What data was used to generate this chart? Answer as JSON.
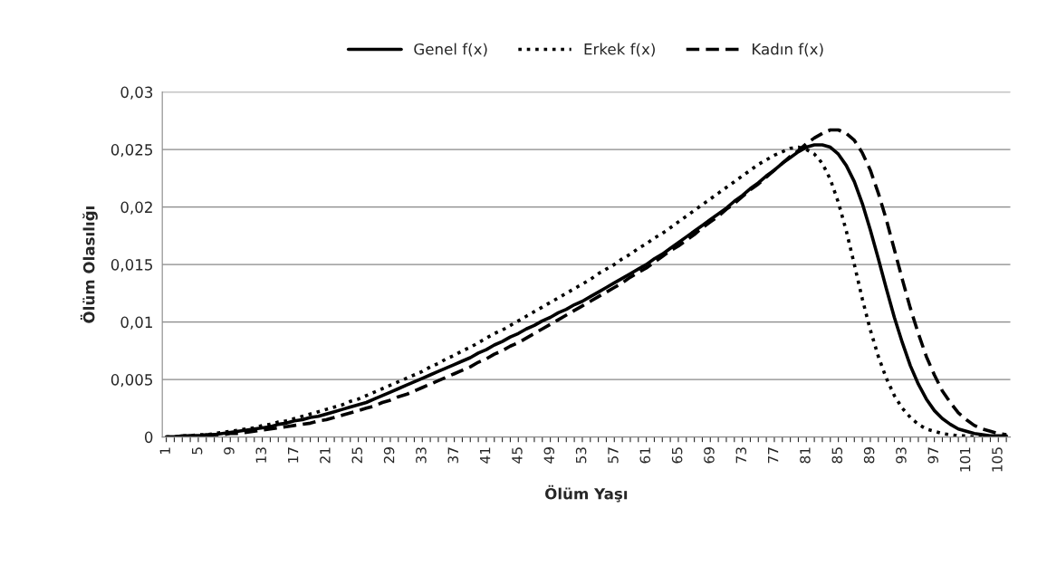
{
  "chart_data": {
    "type": "line",
    "xlabel": "Ölüm Yaşı",
    "ylabel": "Ölüm Olasılığı",
    "categories": [
      "1",
      null,
      null,
      null,
      "5",
      null,
      null,
      null,
      "9",
      null,
      null,
      null,
      "13",
      null,
      null,
      null,
      "17",
      null,
      null,
      null,
      "21",
      null,
      null,
      null,
      "25",
      null,
      null,
      null,
      "29",
      null,
      null,
      null,
      "33",
      null,
      null,
      null,
      "37",
      null,
      null,
      null,
      "41",
      null,
      null,
      null,
      "45",
      null,
      null,
      null,
      "49",
      null,
      null,
      null,
      "53",
      null,
      null,
      null,
      "57",
      null,
      null,
      null,
      "61",
      null,
      null,
      null,
      "65",
      null,
      null,
      null,
      "69",
      null,
      null,
      null,
      "73",
      null,
      null,
      null,
      "77",
      null,
      null,
      null,
      "81",
      null,
      null,
      null,
      "85",
      null,
      null,
      null,
      "89",
      null,
      null,
      null,
      "93",
      null,
      null,
      null,
      "97",
      null,
      null,
      null,
      "101",
      null,
      null,
      null,
      "105",
      null
    ],
    "series": [
      {
        "name": "Genel f(x)",
        "color": "#000000",
        "line_style": "solid",
        "values": [
          0,
          0,
          0.0001,
          0.0001,
          0.0001,
          0.0002,
          0.0002,
          0.0003,
          0.0004,
          0.0005,
          0.0006,
          0.0007,
          0.0008,
          0.0009,
          0.0011,
          0.0012,
          0.0014,
          0.0015,
          0.0017,
          0.0018,
          0.002,
          0.0022,
          0.0024,
          0.0026,
          0.0028,
          0.003,
          0.0033,
          0.0036,
          0.0039,
          0.0042,
          0.0045,
          0.0048,
          0.0051,
          0.0054,
          0.0057,
          0.006,
          0.0063,
          0.0066,
          0.0069,
          0.0073,
          0.0076,
          0.008,
          0.0083,
          0.0087,
          0.009,
          0.0094,
          0.0097,
          0.0101,
          0.0104,
          0.0108,
          0.0111,
          0.0115,
          0.0118,
          0.0122,
          0.0126,
          0.013,
          0.0134,
          0.0138,
          0.0142,
          0.0146,
          0.015,
          0.0155,
          0.0159,
          0.0164,
          0.0169,
          0.0174,
          0.0179,
          0.0184,
          0.0189,
          0.0194,
          0.0199,
          0.0205,
          0.021,
          0.0216,
          0.0221,
          0.0227,
          0.0232,
          0.0238,
          0.0243,
          0.0248,
          0.0252,
          0.0254,
          0.0254,
          0.0252,
          0.0246,
          0.0236,
          0.0222,
          0.0203,
          0.018,
          0.0155,
          0.0129,
          0.0104,
          0.0082,
          0.0062,
          0.0046,
          0.0033,
          0.0023,
          0.0016,
          0.0011,
          0.0007,
          0.0005,
          0.0003,
          0.0002,
          0.0001,
          0.0001,
          0.0001
        ]
      },
      {
        "name": "Erkek f(x)",
        "color": "#000000",
        "line_style": "dotted",
        "values": [
          0,
          0,
          0.0001,
          0.0001,
          0.0002,
          0.0002,
          0.0003,
          0.0004,
          0.0005,
          0.0006,
          0.0007,
          0.0008,
          0.001,
          0.0011,
          0.0013,
          0.0014,
          0.0016,
          0.0018,
          0.002,
          0.0022,
          0.0024,
          0.0026,
          0.0028,
          0.0031,
          0.0033,
          0.0036,
          0.0039,
          0.0042,
          0.0045,
          0.0048,
          0.0051,
          0.0054,
          0.0057,
          0.0061,
          0.0064,
          0.0068,
          0.0071,
          0.0075,
          0.0078,
          0.0082,
          0.0086,
          0.009,
          0.0093,
          0.0097,
          0.0101,
          0.0105,
          0.0109,
          0.0113,
          0.0117,
          0.0121,
          0.0125,
          0.0129,
          0.0133,
          0.0137,
          0.0142,
          0.0146,
          0.015,
          0.0155,
          0.0159,
          0.0164,
          0.0168,
          0.0173,
          0.0177,
          0.0182,
          0.0187,
          0.0192,
          0.0197,
          0.0202,
          0.0207,
          0.0212,
          0.0217,
          0.0222,
          0.0227,
          0.0232,
          0.0237,
          0.0241,
          0.0245,
          0.0248,
          0.0251,
          0.0252,
          0.025,
          0.0246,
          0.0238,
          0.0224,
          0.0204,
          0.0179,
          0.015,
          0.012,
          0.0093,
          0.007,
          0.0051,
          0.0036,
          0.0025,
          0.0017,
          0.0011,
          0.0007,
          0.0005,
          0.0003,
          0.0002,
          0.0001,
          0.0001,
          0,
          0,
          0,
          0,
          0
        ]
      },
      {
        "name": "Kadın f(x)",
        "color": "#000000",
        "line_style": "dashed",
        "values": [
          0,
          0,
          0,
          0.0001,
          0.0001,
          0.0001,
          0.0002,
          0.0002,
          0.0003,
          0.0003,
          0.0004,
          0.0005,
          0.0006,
          0.0007,
          0.0008,
          0.0009,
          0.001,
          0.0011,
          0.0012,
          0.0014,
          0.0015,
          0.0017,
          0.0019,
          0.0021,
          0.0023,
          0.0025,
          0.0027,
          0.003,
          0.0032,
          0.0035,
          0.0037,
          0.004,
          0.0043,
          0.0046,
          0.0049,
          0.0052,
          0.0055,
          0.0058,
          0.0061,
          0.0065,
          0.0068,
          0.0072,
          0.0075,
          0.0079,
          0.0082,
          0.0086,
          0.009,
          0.0094,
          0.0098,
          0.0102,
          0.0106,
          0.011,
          0.0114,
          0.0118,
          0.0122,
          0.0126,
          0.013,
          0.0134,
          0.0139,
          0.0143,
          0.0147,
          0.0152,
          0.0157,
          0.0162,
          0.0166,
          0.0171,
          0.0176,
          0.0182,
          0.0187,
          0.0192,
          0.0198,
          0.0203,
          0.0209,
          0.0215,
          0.022,
          0.0226,
          0.0232,
          0.0238,
          0.0244,
          0.0249,
          0.0255,
          0.026,
          0.0264,
          0.0267,
          0.0267,
          0.0264,
          0.0258,
          0.0247,
          0.0232,
          0.0212,
          0.0189,
          0.0163,
          0.0137,
          0.0112,
          0.009,
          0.007,
          0.0054,
          0.004,
          0.003,
          0.0021,
          0.0015,
          0.001,
          0.0007,
          0.0005,
          0.0003,
          0.0002
        ]
      }
    ],
    "ylim": [
      0,
      0.03
    ],
    "yticks": [
      {
        "value": 0,
        "label": "0"
      },
      {
        "value": 0.005,
        "label": "0,005"
      },
      {
        "value": 0.01,
        "label": "0,01"
      },
      {
        "value": 0.015,
        "label": "0,015"
      },
      {
        "value": 0.02,
        "label": "0,02"
      },
      {
        "value": 0.025,
        "label": "0,025"
      },
      {
        "value": 0.03,
        "label": "0,03"
      }
    ],
    "grid": "y",
    "legend": "top"
  }
}
